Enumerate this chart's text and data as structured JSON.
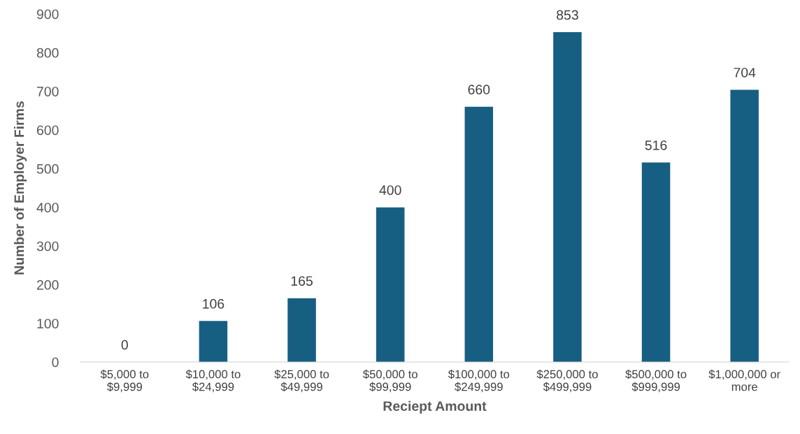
{
  "chart_data": {
    "type": "bar",
    "xlabel": "Reciept Amount",
    "ylabel": "Number of Employer Firms",
    "categories": [
      "$5,000 to\n$9,999",
      "$10,000 to\n$24,999",
      "$25,000 to\n$49,999",
      "$50,000 to\n$99,999",
      "$100,000 to\n$249,999",
      "$250,000 to\n$499,999",
      "$500,000 to\n$999,999",
      "$1,000,000 or\nmore"
    ],
    "values": [
      0,
      106,
      165,
      400,
      660,
      853,
      516,
      704
    ],
    "color": "#175f82",
    "ylim": [
      0,
      900
    ],
    "yticks": [
      0,
      100,
      200,
      300,
      400,
      500,
      600,
      700,
      800,
      900
    ],
    "data_labels": true,
    "grid": false
  }
}
